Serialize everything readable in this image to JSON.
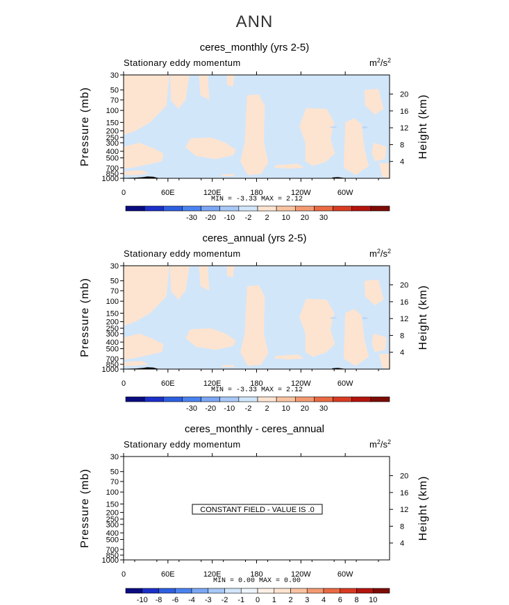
{
  "figure": {
    "title": "ANN",
    "axis_labels": {
      "left": "Pressure (mb)",
      "right": "Height (km)"
    },
    "longitude_ticks": [
      "0",
      "60E",
      "120E",
      "180",
      "120W",
      "60W"
    ],
    "pressure_ticks": [
      "30",
      "50",
      "70",
      "100",
      "150",
      "200",
      "250",
      "300",
      "400",
      "500",
      "700",
      "850",
      "1000"
    ],
    "height_ticks": [
      "20",
      "16",
      "12",
      "8",
      "4"
    ],
    "units_base": "m",
    "units_exp1": "2",
    "units_mid": "/s",
    "units_exp2": "2",
    "colors": {
      "fill_positive": "#fde4d0",
      "fill_negative": "#d2e6fa",
      "topography": "#000000"
    }
  },
  "chart_data": [
    {
      "type": "heatmap",
      "title": "ceres_monthly (yrs 2-5)",
      "subtitle": "Stationary eddy momentum",
      "min_max": "MIN =   -3.33   MAX =    2.12",
      "min": -3.33,
      "max": 2.12,
      "colorbar_labels": [
        "-30",
        "-20",
        "-10",
        "-2",
        "2",
        "10",
        "20",
        "30"
      ],
      "colorbar_colors": [
        "#0a0c80",
        "#1c2fc8",
        "#2d5fe0",
        "#4a82ef",
        "#7ba6f3",
        "#a8c8f6",
        "#d2e6fa",
        "#fde4d0",
        "#f9c3a2",
        "#f39a72",
        "#ea6a43",
        "#d83b22",
        "#b3150e",
        "#7d0c06"
      ]
    },
    {
      "type": "heatmap",
      "title": "ceres_annual (yrs 2-5)",
      "subtitle": "Stationary eddy momentum",
      "min_max": "MIN =   -3.33   MAX =    2.12",
      "min": -3.33,
      "max": 2.12,
      "colorbar_labels": [
        "-30",
        "-20",
        "-10",
        "-2",
        "2",
        "10",
        "20",
        "30"
      ],
      "colorbar_colors": [
        "#0a0c80",
        "#1c2fc8",
        "#2d5fe0",
        "#4a82ef",
        "#7ba6f3",
        "#a8c8f6",
        "#d2e6fa",
        "#fde4d0",
        "#f9c3a2",
        "#f39a72",
        "#ea6a43",
        "#d83b22",
        "#b3150e",
        "#7d0c06"
      ]
    },
    {
      "type": "heatmap",
      "title": "ceres_monthly - ceres_annual",
      "subtitle": "Stationary eddy momentum",
      "min_max": "MIN =    0.00   MAX =    0.00",
      "min": 0.0,
      "max": 0.0,
      "constant_message": "CONSTANT FIELD - VALUE IS .0",
      "colorbar_labels": [
        "-10",
        "-8",
        "-6",
        "-4",
        "-3",
        "-2",
        "-1",
        "0",
        "1",
        "2",
        "3",
        "4",
        "6",
        "8",
        "10"
      ],
      "colorbar_colors": [
        "#0a0c80",
        "#1c2fc8",
        "#2d5fe0",
        "#4a82ef",
        "#7ba6f3",
        "#a8c8f6",
        "#d2e6fa",
        "#eef4fc",
        "#fdf1e6",
        "#fde4d0",
        "#f9c3a2",
        "#f39a72",
        "#ea6a43",
        "#d83b22",
        "#b3150e",
        "#7d0c06"
      ]
    }
  ]
}
